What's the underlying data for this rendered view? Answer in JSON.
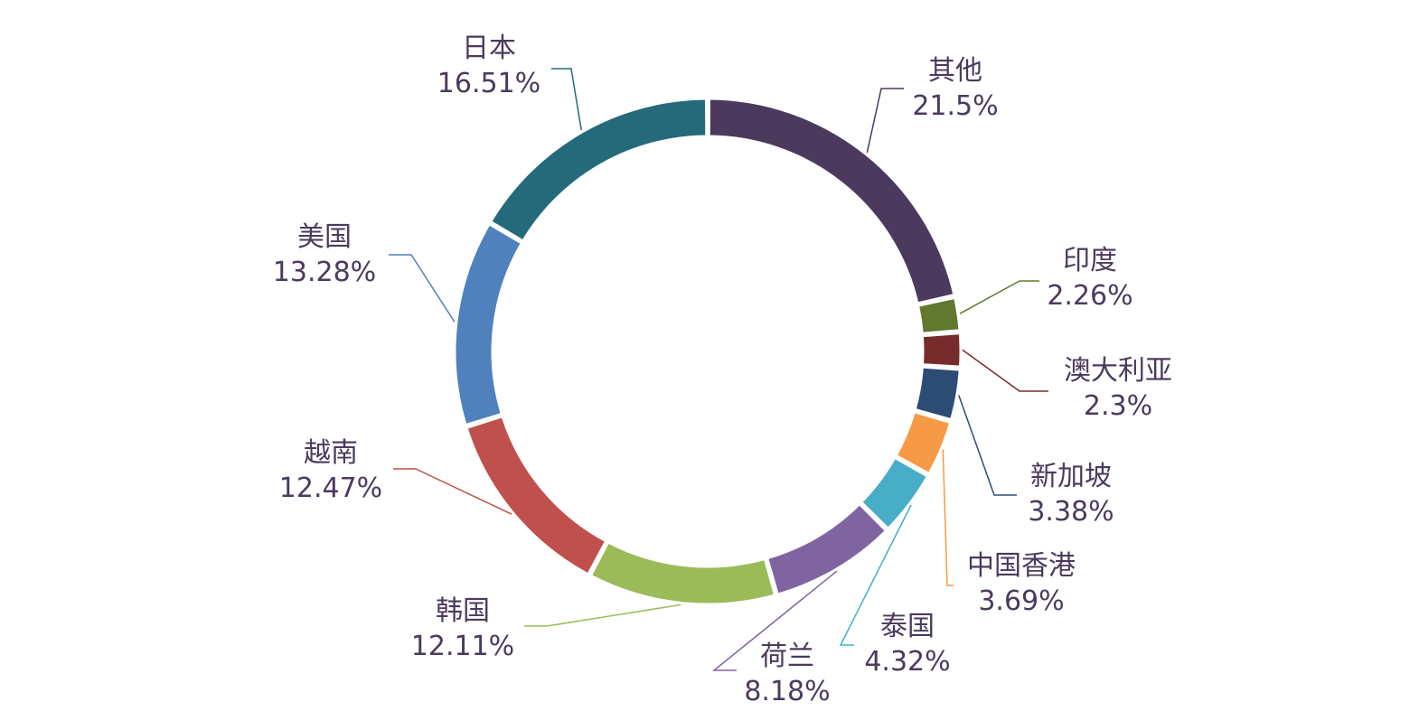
{
  "chart_data": {
    "type": "pie",
    "title": "",
    "categories": [
      "其他",
      "印度",
      "澳大利亚",
      "新加坡",
      "中国香港",
      "泰国",
      "荷兰",
      "韩国",
      "越南",
      "美国",
      "日本"
    ],
    "values": [
      21.5,
      2.26,
      2.3,
      3.38,
      3.69,
      4.32,
      8.18,
      12.11,
      12.47,
      13.28,
      16.51
    ],
    "value_labels": [
      "21.5%",
      "2.26%",
      "2.3%",
      "3.38%",
      "3.69%",
      "4.32%",
      "8.18%",
      "12.11%",
      "12.47%",
      "13.28%",
      "16.51%"
    ],
    "colors": [
      "#4b3a5e",
      "#61782f",
      "#772b2a",
      "#2d4c74",
      "#f79a45",
      "#48adc7",
      "#8064a2",
      "#9bbb59",
      "#c0504d",
      "#4f81bd",
      "#256a7b"
    ],
    "donut": true,
    "legend": "none"
  }
}
